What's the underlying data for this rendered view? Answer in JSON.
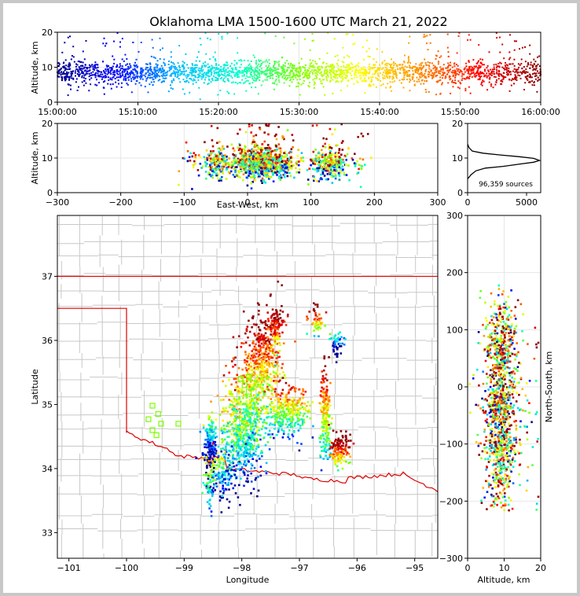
{
  "title": "Oklahoma LMA 1500-1600 UTC March 21, 2022",
  "colors": {
    "colormap": [
      "#00008b",
      "#0000ff",
      "#00bfff",
      "#00ffd0",
      "#7fff00",
      "#ffff00",
      "#ff8c00",
      "#ff0000",
      "#8b0000"
    ],
    "state_border": "#e00000",
    "county_lines": "#c8c8c8",
    "stations": "#7cfc00",
    "frame_bg": "#c8c8c8"
  },
  "chart_data": [
    {
      "id": "alt-time",
      "type": "scatter",
      "title": "Oklahoma LMA 1500-1600 UTC March 21, 2022",
      "ylabel": "Altitude, km",
      "xlim": [
        "15:00:00",
        "16:00:00"
      ],
      "ylim": [
        0,
        20
      ],
      "x_ticks": [
        "15:00:00",
        "15:10:00",
        "15:20:00",
        "15:30:00",
        "15:40:00",
        "15:50:00",
        "16:00:00"
      ],
      "y_ticks": [
        "0",
        "10",
        "20"
      ],
      "grid": true,
      "color_by": "time",
      "note_core_altitude_km": [
        6,
        12
      ]
    },
    {
      "id": "alt-ew",
      "type": "scatter",
      "xlabel": "East-West, km",
      "ylabel": "Altitude, km",
      "xlim": [
        -300,
        300
      ],
      "ylim": [
        0,
        20
      ],
      "x_ticks": [
        "−300",
        "−200",
        "−100",
        "0",
        "100",
        "200",
        "300"
      ],
      "y_ticks": [
        "0",
        "10",
        "20"
      ],
      "grid": true,
      "clusters_km": [
        [
          -60,
          -35
        ],
        [
          -30,
          85
        ],
        [
          100,
          150
        ]
      ]
    },
    {
      "id": "alt-hist",
      "type": "line",
      "x_ticks": [
        "0",
        "5000"
      ],
      "y_ticks": [
        "0",
        "10",
        "20"
      ],
      "xlim": [
        0,
        6200
      ],
      "ylim": [
        0,
        20
      ],
      "grid": true,
      "annotation": "96,359 sources",
      "points": [
        [
          0,
          4
        ],
        [
          300,
          5.2
        ],
        [
          700,
          6.3
        ],
        [
          1500,
          7.1
        ],
        [
          3000,
          7.6
        ],
        [
          4500,
          8.3
        ],
        [
          5600,
          8.8
        ],
        [
          6100,
          9.3
        ],
        [
          5600,
          9.9
        ],
        [
          4300,
          10.4
        ],
        [
          2700,
          10.9
        ],
        [
          1300,
          11.4
        ],
        [
          400,
          12
        ],
        [
          120,
          13
        ],
        [
          0,
          14
        ]
      ]
    },
    {
      "id": "plan-map",
      "type": "scatter",
      "xlabel": "Longitude",
      "ylabel": "Latitude",
      "xlim": [
        -101.2,
        -94.6
      ],
      "ylim": [
        32.6,
        37.95
      ],
      "x_ticks": [
        "−101",
        "−100",
        "−99",
        "−98",
        "−97",
        "−96",
        "−95"
      ],
      "y_ticks": [
        "33",
        "34",
        "35",
        "36",
        "37"
      ],
      "stations": [
        [
          -99.55,
          34.98
        ],
        [
          -99.62,
          34.77
        ],
        [
          -99.45,
          34.85
        ],
        [
          -99.4,
          34.7
        ],
        [
          -99.55,
          34.6
        ],
        [
          -99.48,
          34.52
        ],
        [
          -99.1,
          34.7
        ],
        [
          -97.88,
          35.43
        ],
        [
          -98.02,
          35.4
        ],
        [
          -97.95,
          35.3
        ],
        [
          -97.88,
          35.2
        ]
      ]
    },
    {
      "id": "alt-ns",
      "type": "scatter",
      "xlabel": "Altitude, km",
      "ylabel": "North-South, km",
      "xlim": [
        0,
        20
      ],
      "ylim": [
        -300,
        300
      ],
      "x_ticks": [
        "0",
        "10",
        "20"
      ],
      "y_ticks": [
        "−300",
        "−200",
        "−100",
        "0",
        "100",
        "200",
        "300"
      ],
      "grid": true
    }
  ]
}
